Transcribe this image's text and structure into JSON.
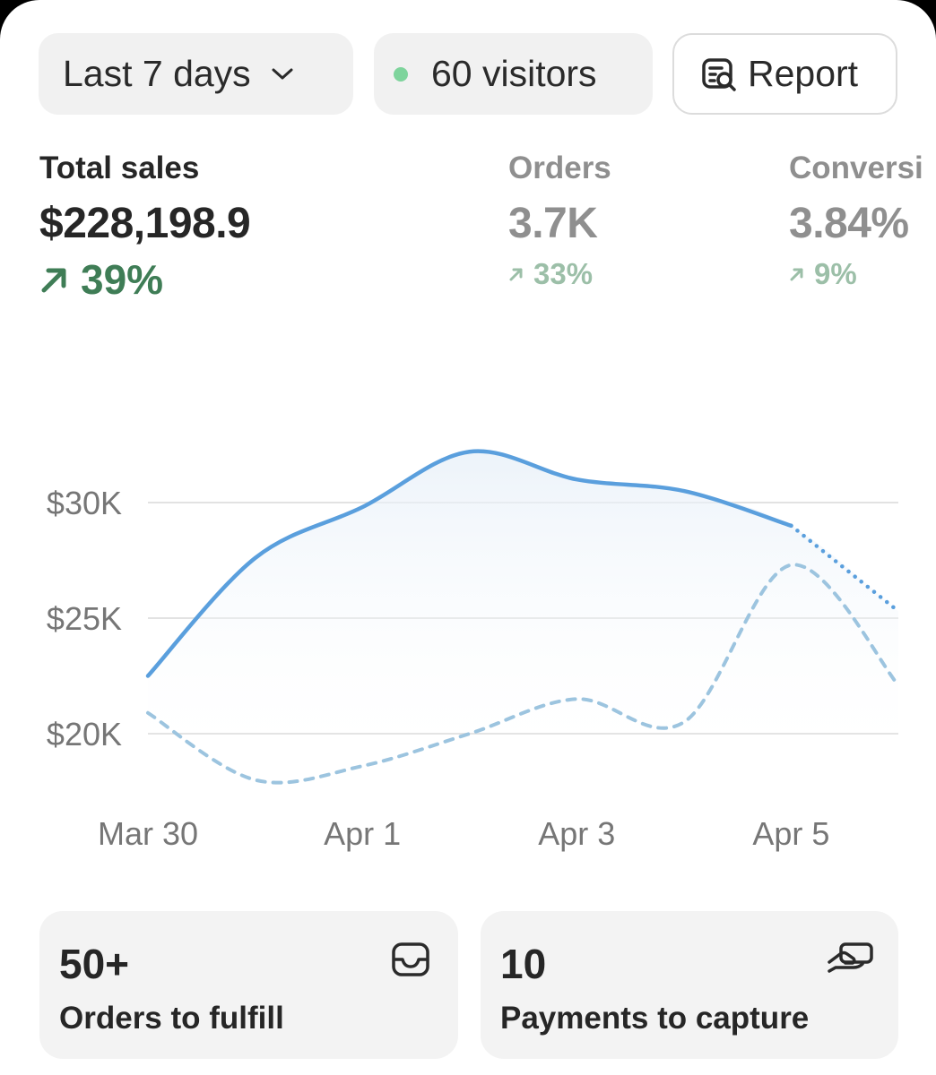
{
  "filters": {
    "date_range": "Last 7 days",
    "visitors": "60 visitors",
    "report_label": "Report"
  },
  "metrics": [
    {
      "label": "Total sales",
      "value": "$228,198.9",
      "change": "39%"
    },
    {
      "label": "Orders",
      "value": "3.7K",
      "change": "33%"
    },
    {
      "label": "Conversi",
      "value": "3.84%",
      "change": "9%"
    }
  ],
  "colors": {
    "current_line": "#5a9fdd",
    "previous_line": "#9cc4df",
    "positive": "#3f7d56",
    "positive_muted": "#9cbfa8",
    "live_dot": "#7ed49c"
  },
  "chart_data": {
    "type": "line",
    "x_tick_labels": [
      "Mar 30",
      "Apr 1",
      "Apr 3",
      "Apr 5"
    ],
    "y_tick_labels": [
      "$30K",
      "$25K",
      "$20K"
    ],
    "y_ticks": [
      30000,
      25000,
      20000
    ],
    "ylim": [
      20000,
      30000
    ],
    "grid": true,
    "series": [
      {
        "role": "current",
        "style": "solid-with-dotted-projection",
        "points": [
          [
            "2024-03-30",
            22500
          ],
          [
            "2024-03-31",
            27600
          ],
          [
            "2024-04-01",
            29800
          ],
          [
            "2024-04-02",
            32200
          ],
          [
            "2024-04-03",
            31000
          ],
          [
            "2024-04-04",
            30500
          ],
          [
            "2024-04-05",
            29000
          ],
          [
            "2024-04-06",
            25300
          ]
        ],
        "projected_from": "2024-04-05"
      },
      {
        "role": "previous",
        "style": "dashed",
        "points": [
          [
            "2024-03-30",
            20900
          ],
          [
            "2024-03-31",
            18000
          ],
          [
            "2024-04-01",
            18600
          ],
          [
            "2024-04-02",
            20000
          ],
          [
            "2024-04-03",
            21500
          ],
          [
            "2024-04-04",
            20500
          ],
          [
            "2024-04-05",
            27300
          ],
          [
            "2024-04-06",
            22100
          ]
        ]
      }
    ]
  },
  "cards": [
    {
      "number": "50+",
      "label": "Orders to fulfill",
      "icon": "inbox-icon"
    },
    {
      "number": "10",
      "label": "Payments to capture",
      "icon": "hand-cash-icon"
    }
  ]
}
